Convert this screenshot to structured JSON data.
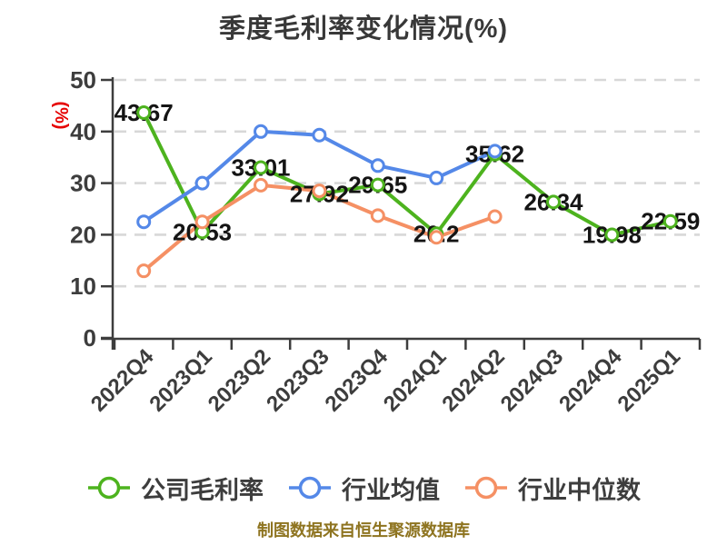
{
  "title": "季度毛利率变化情况(%)",
  "colors": {
    "company_series": "#4db31e",
    "industry_mean_series": "#5488e8",
    "industry_median_series": "#f59064",
    "axis": "#3d3d3d",
    "gridline": "#d8d8d8",
    "data_label": "#141414",
    "title_text": "#383838",
    "y_unit_label": "#e60000",
    "source_note_text": "#8e7420",
    "marker_fill": "#ffffff"
  },
  "chart_data": {
    "type": "line",
    "title": "季度毛利率变化情况(%)",
    "ylabel": "(%)",
    "xlabel": "",
    "ylim": [
      0,
      50
    ],
    "yticks": [
      0,
      10,
      20,
      30,
      40,
      50
    ],
    "grid": "horizontal-dashed",
    "legend_position": "bottom",
    "x_tick_label_rotation": 45,
    "categories": [
      "2022Q4",
      "2023Q1",
      "2023Q2",
      "2023Q3",
      "2023Q4",
      "2024Q1",
      "2024Q2",
      "2024Q3",
      "2024Q4",
      "2025Q1"
    ],
    "series": [
      {
        "name": "公司毛利率",
        "color": "#4db31e",
        "show_point_labels": true,
        "values": [
          43.67,
          20.53,
          33.01,
          27.92,
          29.65,
          20.2,
          35.62,
          26.34,
          19.98,
          22.59
        ]
      },
      {
        "name": "行业均值",
        "color": "#5488e8",
        "show_point_labels": false,
        "values": [
          22.5,
          30,
          40,
          39.3,
          33.4,
          31,
          36.2,
          null,
          null,
          null
        ]
      },
      {
        "name": "行业中位数",
        "color": "#f59064",
        "show_point_labels": false,
        "values": [
          13,
          22.5,
          29.6,
          28.5,
          23.7,
          19.5,
          23.5,
          null,
          null,
          null
        ]
      }
    ],
    "source_note": "制图数据来自恒生聚源数据库"
  }
}
